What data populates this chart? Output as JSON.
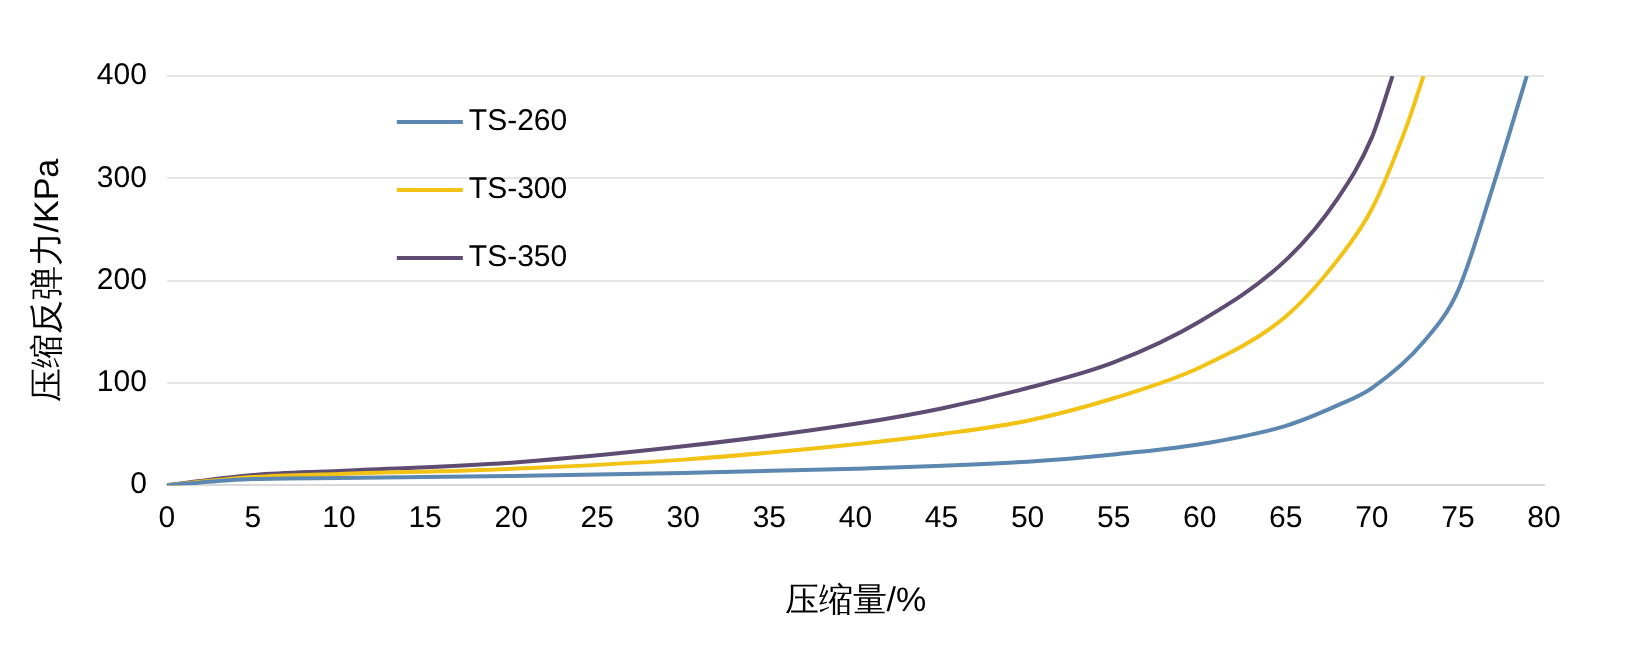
{
  "chart_data": {
    "type": "line",
    "xlabel": "压缩量/%",
    "ylabel": "压缩反弹力/KPa",
    "xlim": [
      0,
      80
    ],
    "xticks": [
      0,
      5,
      10,
      15,
      20,
      25,
      30,
      35,
      40,
      45,
      50,
      55,
      60,
      65,
      70,
      75,
      80
    ],
    "ylim": [
      0,
      400
    ],
    "yticks": [
      0,
      100,
      200,
      300,
      400
    ],
    "grid": "y",
    "legend": "top left",
    "marker": "none",
    "line_style": "solid",
    "series": [
      {
        "name": "TS-260",
        "color": "#5b87b0",
        "x": [
          0,
          5,
          10,
          20,
          30,
          40,
          50,
          55,
          60,
          65,
          68,
          70,
          73,
          75,
          77,
          79
        ],
        "values": [
          0,
          6,
          7,
          9,
          12,
          16,
          23,
          30,
          40,
          58,
          78,
          95,
          140,
          190,
          290,
          400
        ]
      },
      {
        "name": "TS-300",
        "color": "#f2c314",
        "x": [
          0,
          5,
          10,
          20,
          30,
          40,
          45,
          50,
          55,
          60,
          65,
          68,
          70,
          72,
          73
        ],
        "values": [
          0,
          8,
          11,
          16,
          25,
          40,
          50,
          63,
          85,
          115,
          165,
          220,
          270,
          350,
          400
        ]
      },
      {
        "name": "TS-350",
        "color": "#5e4c73",
        "x": [
          0,
          5,
          10,
          20,
          30,
          40,
          45,
          50,
          55,
          60,
          65,
          68,
          70,
          71.2
        ],
        "values": [
          0,
          10,
          14,
          22,
          38,
          60,
          75,
          95,
          120,
          160,
          220,
          280,
          340,
          400
        ]
      }
    ]
  }
}
